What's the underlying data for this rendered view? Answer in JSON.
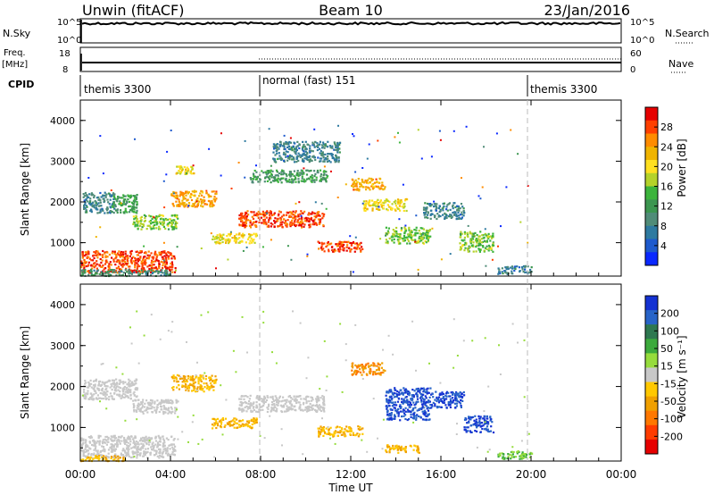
{
  "header": {
    "station": "Unwin (fitACF)",
    "beam": "Beam 10",
    "date": "23/Jan/2016"
  },
  "summary_panels": {
    "nsky_label": "N.Sky",
    "nsky_ticks": [
      "10^5",
      "10^0"
    ],
    "nsearch_label": "N.Search",
    "nsearch_ticks": [
      "10^5",
      "10^0"
    ],
    "freq_label": "Freq.",
    "freq_unit": "[MHz]",
    "freq_ticks": [
      "18",
      "8"
    ],
    "nave_label": "Nave",
    "nave_ticks": [
      "60",
      "0"
    ],
    "cpid_label": "CPID"
  },
  "cpid_segments": [
    {
      "start_hour": 0,
      "end_hour": 8,
      "label": "themis 3300"
    },
    {
      "start_hour": 8,
      "end_hour": 20,
      "label": "normal (fast) 151"
    },
    {
      "start_hour": 20,
      "end_hour": 24,
      "label": "themis 3300"
    }
  ],
  "panels": {
    "power": {
      "ylabel": "Slant Range [km]",
      "colorbar_label": "Power [dB]",
      "colorbar_ticks": [
        "28",
        "24",
        "20",
        "16",
        "12",
        "8",
        "4"
      ],
      "colorbar_colors": [
        "#e60000",
        "#ff4000",
        "#ff8c00",
        "#f0b400",
        "#ffe020",
        "#b4d22a",
        "#3cb43c",
        "#3c9650",
        "#508c78",
        "#2e7aa0",
        "#1e5acd",
        "#0a28ff"
      ]
    },
    "velocity": {
      "ylabel": "Slant Range [km]",
      "colorbar_label": "Velocity [m s⁻¹]",
      "colorbar_ticks": [
        "200",
        "100",
        "50",
        "15",
        "-15",
        "-50",
        "-100",
        "-200"
      ],
      "colorbar_colors": [
        "#1432d2",
        "#2864c8",
        "#2e7850",
        "#3caa3c",
        "#96dc3c",
        "#c8c8c8",
        "#ffc800",
        "#f0a000",
        "#ff7800",
        "#ff3c00",
        "#e60000"
      ]
    }
  },
  "x_axis": {
    "label": "Time UT",
    "ticks": [
      "00:00",
      "04:00",
      "08:00",
      "12:00",
      "16:00",
      "20:00",
      "00:00"
    ]
  },
  "chart_data": {
    "type": "heatmap",
    "title": "Unwin (fitACF)  Beam 10  23/Jan/2016",
    "xlabel": "Time UT",
    "ylabel": "Slant Range [km]",
    "xlim_hours": [
      0,
      24
    ],
    "ylim_km": [
      180,
      4500
    ],
    "y_ticks": [
      1000,
      2000,
      3000,
      4000
    ],
    "power_blobs": [
      {
        "t0": 0.0,
        "t1": 4.2,
        "r0": 280,
        "r1": 820,
        "level": 28
      },
      {
        "t0": 0.0,
        "t1": 4.0,
        "r0": 200,
        "r1": 360,
        "level": 10
      },
      {
        "t0": 0.1,
        "t1": 1.5,
        "r0": 1750,
        "r1": 2250,
        "level": 8
      },
      {
        "t0": 1.3,
        "t1": 2.5,
        "r0": 1750,
        "r1": 2200,
        "level": 12
      },
      {
        "t0": 2.3,
        "t1": 4.3,
        "r0": 1350,
        "r1": 1700,
        "level": 16
      },
      {
        "t0": 4.0,
        "t1": 6.0,
        "r0": 1900,
        "r1": 2300,
        "level": 24
      },
      {
        "t0": 4.2,
        "t1": 5.0,
        "r0": 2700,
        "r1": 2900,
        "level": 20
      },
      {
        "t0": 5.8,
        "t1": 7.8,
        "r0": 1000,
        "r1": 1250,
        "level": 20
      },
      {
        "t0": 7.0,
        "t1": 10.8,
        "r0": 1400,
        "r1": 1800,
        "level": 28
      },
      {
        "t0": 7.5,
        "t1": 11.0,
        "r0": 2500,
        "r1": 2800,
        "level": 12
      },
      {
        "t0": 8.5,
        "t1": 11.5,
        "r0": 3000,
        "r1": 3500,
        "level": 8
      },
      {
        "t0": 10.5,
        "t1": 12.5,
        "r0": 800,
        "r1": 1050,
        "level": 28
      },
      {
        "t0": 12.0,
        "t1": 13.5,
        "r0": 2300,
        "r1": 2600,
        "level": 24
      },
      {
        "t0": 12.5,
        "t1": 14.5,
        "r0": 1800,
        "r1": 2100,
        "level": 20
      },
      {
        "t0": 13.5,
        "t1": 15.5,
        "r0": 1000,
        "r1": 1400,
        "level": 16
      },
      {
        "t0": 15.2,
        "t1": 17.0,
        "r0": 1600,
        "r1": 2000,
        "level": 8
      },
      {
        "t0": 16.8,
        "t1": 18.3,
        "r0": 800,
        "r1": 1300,
        "level": 16
      },
      {
        "t0": 18.5,
        "t1": 20.0,
        "r0": 250,
        "r1": 450,
        "level": 8
      }
    ],
    "velocity_blobs": [
      {
        "t0": 0.0,
        "t1": 4.2,
        "r0": 280,
        "r1": 820,
        "level": 0
      },
      {
        "t0": 0.0,
        "t1": 2.0,
        "r0": 200,
        "r1": 330,
        "level": -50
      },
      {
        "t0": 0.1,
        "t1": 2.5,
        "r0": 1700,
        "r1": 2200,
        "level": 0
      },
      {
        "t0": 2.3,
        "t1": 4.3,
        "r0": 1350,
        "r1": 1700,
        "level": 0
      },
      {
        "t0": 4.0,
        "t1": 6.0,
        "r0": 1900,
        "r1": 2300,
        "level": -50
      },
      {
        "t0": 5.8,
        "t1": 7.8,
        "r0": 1000,
        "r1": 1250,
        "level": -50
      },
      {
        "t0": 7.0,
        "t1": 10.8,
        "r0": 1400,
        "r1": 1800,
        "level": 0
      },
      {
        "t0": 10.5,
        "t1": 12.5,
        "r0": 800,
        "r1": 1050,
        "level": -50
      },
      {
        "t0": 12.0,
        "t1": 13.5,
        "r0": 2300,
        "r1": 2600,
        "level": -100
      },
      {
        "t0": 13.5,
        "t1": 15.5,
        "r0": 1200,
        "r1": 2000,
        "level": 200
      },
      {
        "t0": 15.5,
        "t1": 17.0,
        "r0": 1500,
        "r1": 1900,
        "level": 200
      },
      {
        "t0": 17.0,
        "t1": 18.3,
        "r0": 900,
        "r1": 1300,
        "level": 200
      },
      {
        "t0": 13.5,
        "t1": 15.0,
        "r0": 400,
        "r1": 600,
        "level": -50
      },
      {
        "t0": 18.5,
        "t1": 20.0,
        "r0": 250,
        "r1": 450,
        "level": 50
      }
    ]
  }
}
